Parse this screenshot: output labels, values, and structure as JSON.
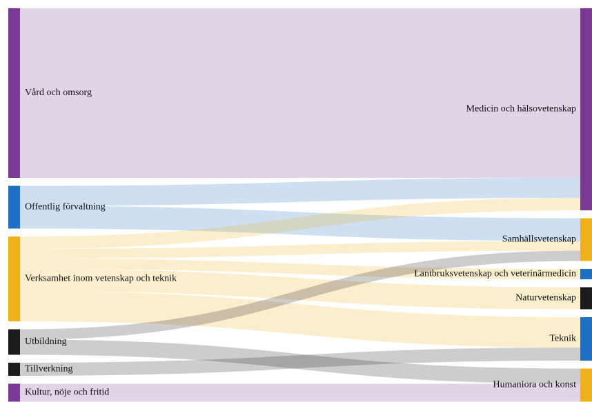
{
  "chart_data": {
    "type": "sankey",
    "sources": [
      {
        "name": "Vård och omsorg",
        "color": "#7a3a93"
      },
      {
        "name": "Offentlig förvaltning",
        "color": "#1f6fc5"
      },
      {
        "name": "Verksamhet inom vetenskap och teknik",
        "color": "#efb21c"
      },
      {
        "name": "Utbildning",
        "color": "#1c1c1c"
      },
      {
        "name": "Tillverkning",
        "color": "#1c1c1c"
      },
      {
        "name": "Kultur, nöje och fritid",
        "color": "#7a3a93"
      }
    ],
    "targets": [
      {
        "name": "Medicin och hälsovetenskap",
        "color": "#7a3a93"
      },
      {
        "name": "Samhällsvetenskap",
        "color": "#efb21c"
      },
      {
        "name": "Lantbruksvetenskap och veterinärmedicin",
        "color": "#1f6fc5"
      },
      {
        "name": "Naturvetenskap",
        "color": "#1c1c1c"
      },
      {
        "name": "Teknik",
        "color": "#1f6fc5"
      },
      {
        "name": "Humaniora och konst",
        "color": "#efb21c"
      }
    ],
    "links": [
      {
        "source": 0,
        "target": 0,
        "value": 246
      },
      {
        "source": 1,
        "target": 0,
        "value": 29
      },
      {
        "source": 1,
        "target": 1,
        "value": 33
      },
      {
        "source": 2,
        "target": 0,
        "value": 18
      },
      {
        "source": 2,
        "target": 1,
        "value": 14
      },
      {
        "source": 2,
        "target": 2,
        "value": 15
      },
      {
        "source": 2,
        "target": 3,
        "value": 32
      },
      {
        "source": 2,
        "target": 4,
        "value": 44
      },
      {
        "source": 3,
        "target": 1,
        "value": 15
      },
      {
        "source": 3,
        "target": 5,
        "value": 22
      },
      {
        "source": 4,
        "target": 4,
        "value": 19
      },
      {
        "source": 5,
        "target": 5,
        "value": 26
      }
    ]
  }
}
